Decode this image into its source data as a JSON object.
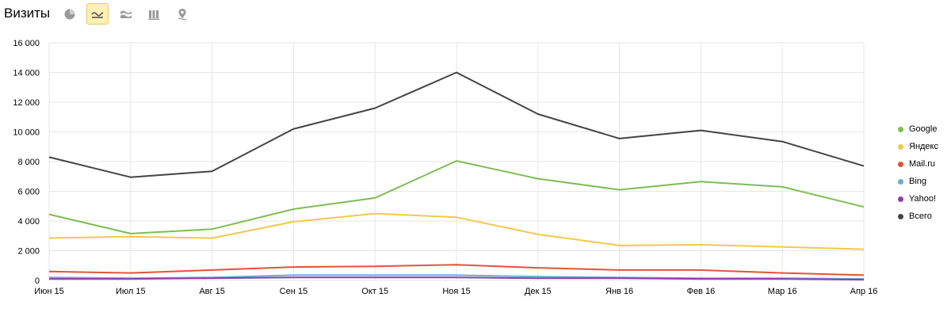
{
  "header": {
    "title": "Визиты",
    "tools": [
      {
        "name": "pie-chart-icon",
        "active": false
      },
      {
        "name": "line-chart-icon",
        "active": true
      },
      {
        "name": "area-chart-icon",
        "active": false
      },
      {
        "name": "bar-chart-icon",
        "active": false
      },
      {
        "name": "map-icon",
        "active": false
      }
    ]
  },
  "chart_data": {
    "type": "line",
    "title": "",
    "xlabel": "",
    "ylabel": "",
    "categories": [
      "Июн 15",
      "Июл 15",
      "Авг 15",
      "Сен 15",
      "Окт 15",
      "Ноя 15",
      "Дек 15",
      "Янв 16",
      "Фев 16",
      "Мар 16",
      "Апр 16"
    ],
    "ylim": [
      0,
      16000
    ],
    "yticks": [
      0,
      2000,
      4000,
      6000,
      8000,
      10000,
      12000,
      14000,
      16000
    ],
    "ytick_labels": [
      "0",
      "2 000",
      "4 000",
      "6 000",
      "8 000",
      "10 000",
      "12 000",
      "14 000",
      "16 000"
    ],
    "grid": true,
    "legend_position": "right",
    "series": [
      {
        "name": "Google",
        "color": "#7dbe54",
        "values": [
          4450,
          3150,
          3450,
          4800,
          5550,
          8050,
          6850,
          6100,
          6650,
          6300,
          4950
        ]
      },
      {
        "name": "Яндекс",
        "color": "#f2c94c",
        "values": [
          2850,
          2950,
          2850,
          3950,
          4500,
          4250,
          3100,
          2350,
          2400,
          2250,
          2100
        ]
      },
      {
        "name": "Mail.ru",
        "color": "#e2533a",
        "values": [
          600,
          500,
          700,
          900,
          950,
          1050,
          850,
          700,
          700,
          500,
          350
        ]
      },
      {
        "name": "Bing",
        "color": "#6aaad9",
        "values": [
          200,
          150,
          200,
          350,
          350,
          350,
          250,
          200,
          150,
          150,
          100
        ]
      },
      {
        "name": "Yahoo!",
        "color": "#8e3fa8",
        "values": [
          100,
          100,
          150,
          200,
          200,
          200,
          150,
          150,
          100,
          100,
          50
        ]
      },
      {
        "name": "Всего",
        "color": "#444444",
        "values": [
          8300,
          6950,
          7350,
          10200,
          11600,
          14000,
          11200,
          9550,
          10100,
          9350,
          7700
        ]
      }
    ]
  }
}
